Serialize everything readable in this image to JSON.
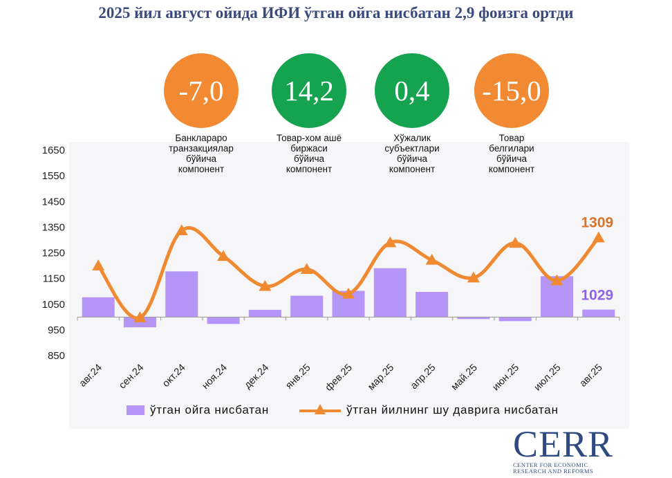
{
  "title": "2025 йил август ойида ИФИ ўтган ойга нисбатан 2,9 фоизга ортди",
  "indicators": [
    {
      "value": "-7,0",
      "color": "#f28a34",
      "label_lines": [
        "Банклараро",
        "транзакциялар",
        "бўйича",
        "компонент"
      ]
    },
    {
      "value": "14,2",
      "color": "#16a34f",
      "label_lines": [
        "Товар-хом ашё",
        "биржаси",
        "бўйича",
        "компонент"
      ]
    },
    {
      "value": "0,4",
      "color": "#16a34f",
      "label_lines": [
        "Хўжалик",
        "субъектлари",
        "бўйича",
        "компонент"
      ]
    },
    {
      "value": "-15,0",
      "color": "#f28a34",
      "label_lines": [
        "Товар",
        "белгилари",
        "бўйича",
        "компонент"
      ]
    }
  ],
  "legend": {
    "bar": "ўтган ойга нисбатан",
    "line": "ўтган йилнинг шу даврига нисбатан"
  },
  "logo": {
    "word": "CERR",
    "sub_line1": "CENTER FOR ECONOMIC",
    "sub_line2": "RESEARCH AND REFORMS"
  },
  "chart_data": {
    "type": "bar",
    "categories": [
      "авг.24",
      "сен.24",
      "окт.24",
      "ноя.24",
      "дек.24",
      "янв.25",
      "фев.25",
      "мар.25",
      "апр.25",
      "май.25",
      "июн.25",
      "июл.25",
      "авг.25"
    ],
    "y_ticks": [
      850,
      950,
      1050,
      1150,
      1250,
      1350,
      1450,
      1550,
      1650
    ],
    "ylim": [
      850,
      1650
    ],
    "baseline": 1000,
    "series": [
      {
        "name": "ўтган ойга нисбатан",
        "type": "bar",
        "color": "#b596f7",
        "values": [
          1077,
          960,
          1178,
          973,
          1028,
          1083,
          1102,
          1190,
          1098,
          992,
          984,
          1159,
          1029
        ]
      },
      {
        "name": "ўтган йилнинг шу даврига нисбатан",
        "type": "line",
        "color": "#f08a32",
        "values": [
          1200,
          998,
          1337,
          1237,
          1120,
          1186,
          1090,
          1290,
          1222,
          1153,
          1288,
          1142,
          1309
        ]
      }
    ],
    "data_labels": [
      {
        "series": 1,
        "index": 12,
        "text": "1309",
        "color": "#d9732a"
      },
      {
        "series": 0,
        "index": 12,
        "text": "1029",
        "color": "#8e63e8"
      }
    ],
    "grid": false
  }
}
